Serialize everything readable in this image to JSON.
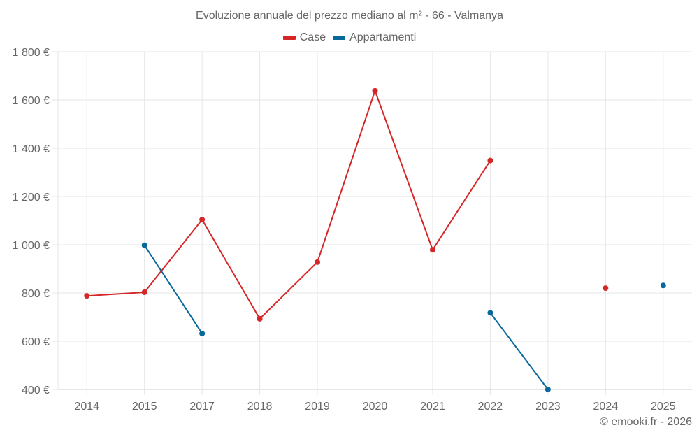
{
  "chart_data": {
    "type": "line",
    "title": "Evoluzione annuale del prezzo mediano al m² - 66 - Valmanya",
    "xlabel": "",
    "ylabel": "",
    "categories": [
      "2014",
      "2015",
      "2017",
      "2018",
      "2019",
      "2020",
      "2021",
      "2022",
      "2023",
      "2024",
      "2025"
    ],
    "series": [
      {
        "name": "Case",
        "color": "#d62728",
        "values": [
          788,
          803,
          1104,
          693,
          928,
          1638,
          979,
          1349,
          null,
          820,
          null
        ]
      },
      {
        "name": "Appartamenti",
        "color": "#08679b",
        "values": [
          null,
          998,
          632,
          null,
          null,
          null,
          null,
          718,
          400,
          null,
          831
        ]
      }
    ],
    "ylim": [
      400,
      1800
    ],
    "yticks": [
      400,
      600,
      800,
      1000,
      1200,
      1400,
      1600,
      1800
    ],
    "ytick_labels": [
      "400 €",
      "600 €",
      "800 €",
      "1 000 €",
      "1 200 €",
      "1 400 €",
      "1 600 €",
      "1 800 €"
    ],
    "grid": true,
    "legend_position": "top"
  },
  "legend": {
    "items": [
      {
        "label": "Case",
        "color": "#d62728"
      },
      {
        "label": "Appartamenti",
        "color": "#08679b"
      }
    ]
  },
  "credit": "© emooki.fr - 2026"
}
